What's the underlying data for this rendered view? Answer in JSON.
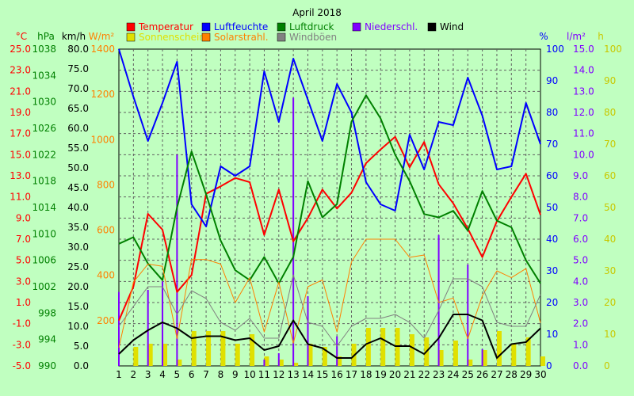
{
  "chart_data": {
    "type": "line",
    "title": "April 2018",
    "x": [
      1,
      2,
      3,
      4,
      5,
      6,
      7,
      8,
      9,
      10,
      11,
      12,
      13,
      14,
      15,
      16,
      17,
      18,
      19,
      20,
      21,
      22,
      23,
      24,
      25,
      26,
      27,
      28,
      29,
      30
    ],
    "legend": [
      {
        "label": "Temperatur",
        "color": "#ff0000"
      },
      {
        "label": "Luftfeuchte",
        "color": "#0000ff"
      },
      {
        "label": "Luftdruck",
        "color": "#008000"
      },
      {
        "label": "Niederschl.",
        "color": "#8000ff"
      },
      {
        "label": "Wind",
        "color": "#000000"
      },
      {
        "label": "Sonnenschein",
        "color": "#e0e000"
      },
      {
        "label": "Solarstrahl.",
        "color": "#ff8000"
      },
      {
        "label": "Windböen",
        "color": "#808080"
      }
    ],
    "axes": [
      {
        "unit": "°C",
        "color": "#ff0000",
        "min": -5,
        "max": 25,
        "ticks": [
          "25.0",
          "23.0",
          "21.0",
          "19.0",
          "17.0",
          "15.0",
          "13.0",
          "11.0",
          "9.0",
          "7.0",
          "5.0",
          "3.0",
          "1.0",
          "-1.0",
          "-3.0",
          "-5.0"
        ]
      },
      {
        "unit": "hPa",
        "color": "#008000",
        "min": 990,
        "max": 1038,
        "ticks": [
          "1038",
          "1034",
          "1030",
          "1026",
          "1022",
          "1018",
          "1014",
          "1010",
          "1006",
          "1002",
          "998",
          "994",
          "990"
        ]
      },
      {
        "unit": "km/h",
        "color": "#000000",
        "min": 0,
        "max": 80,
        "ticks": [
          "80.0",
          "75.0",
          "70.0",
          "65.0",
          "60.0",
          "55.0",
          "50.0",
          "45.0",
          "40.0",
          "35.0",
          "30.0",
          "25.0",
          "20.0",
          "15.0",
          "10.0",
          "5.0",
          "0.0"
        ]
      },
      {
        "unit": "W/m²",
        "color": "#ff8000",
        "min": 0,
        "max": 1400,
        "ticks": [
          "1400",
          "1200",
          "1000",
          "800",
          "600",
          "400",
          "200"
        ]
      },
      {
        "unit": "%",
        "color": "#0000ff",
        "min": 0,
        "max": 100,
        "ticks": [
          "100",
          "90",
          "80",
          "70",
          "60",
          "50",
          "40",
          "30",
          "20",
          "10",
          "0"
        ]
      },
      {
        "unit": "l/m²",
        "color": "#8000ff",
        "min": 0,
        "max": 15,
        "ticks": [
          "15.0",
          "14.0",
          "13.0",
          "12.0",
          "11.0",
          "10.0",
          "9.0",
          "8.0",
          "7.0",
          "6.0",
          "5.0",
          "4.0",
          "3.0",
          "2.0",
          "1.0",
          "0.0"
        ]
      },
      {
        "unit": "h",
        "color": "#c8c800",
        "min": 0,
        "max": 100,
        "ticks": [
          "100",
          "90",
          "80",
          "70",
          "60",
          "50",
          "40",
          "30",
          "20",
          "10",
          "0"
        ]
      }
    ],
    "series": [
      {
        "name": "Temperatur",
        "color": "#ff0000",
        "width": 2,
        "axis": 0,
        "values": [
          -0.7,
          2.5,
          9.4,
          7.9,
          2.0,
          3.6,
          11.3,
          12.0,
          12.8,
          12.4,
          7.4,
          11.7,
          6.8,
          9.0,
          11.7,
          9.9,
          11.4,
          14.2,
          15.5,
          16.7,
          13.8,
          16.2,
          12.2,
          10.4,
          8.0,
          5.3,
          8.7,
          11.0,
          13.2,
          9.3
        ]
      },
      {
        "name": "Luftfeuchte",
        "color": "#0000ff",
        "width": 2,
        "axis": 4,
        "values": [
          100,
          85,
          71,
          83,
          96,
          51,
          44,
          63,
          60,
          63,
          93,
          77,
          97,
          84,
          71,
          89,
          80,
          58,
          51,
          49,
          73,
          62,
          77,
          76,
          91,
          79,
          62,
          63,
          83,
          70
        ]
      },
      {
        "name": "Luftdruck",
        "color": "#008000",
        "width": 2,
        "axis": 1,
        "values": [
          1008.5,
          1009.5,
          1005.5,
          1003.0,
          1014.0,
          1022.5,
          1016.0,
          1009.0,
          1004.5,
          1003.0,
          1006.5,
          1002.5,
          1006.5,
          1018.0,
          1012.5,
          1014.5,
          1027.0,
          1031.0,
          1027.5,
          1022.0,
          1018.0,
          1013.0,
          1012.5,
          1013.5,
          1010.5,
          1016.5,
          1012.0,
          1011.0,
          1006.0,
          1002.5
        ]
      },
      {
        "name": "Solarstrahl.",
        "color": "#ff8000",
        "width": 1,
        "axis": 3,
        "values": [
          80,
          370,
          450,
          440,
          120,
          470,
          470,
          450,
          280,
          390,
          150,
          370,
          100,
          350,
          380,
          150,
          460,
          560,
          560,
          560,
          480,
          490,
          280,
          300,
          120,
          310,
          420,
          390,
          430,
          190
        ]
      },
      {
        "name": "Windböen",
        "color": "#808080",
        "width": 1,
        "axis": 2,
        "values": [
          10.0,
          15.0,
          20.0,
          20.0,
          13.0,
          19.0,
          17.0,
          11.0,
          9.0,
          12.0,
          7.0,
          7.0,
          23.0,
          11.0,
          10.0,
          5.0,
          10.0,
          12.0,
          12.0,
          13.0,
          11.0,
          7.0,
          14.0,
          22.0,
          22.0,
          20.0,
          11.0,
          10.0,
          10.0,
          18.0
        ]
      },
      {
        "name": "Wind",
        "color": "#000000",
        "width": 2,
        "axis": 2,
        "values": [
          3.0,
          6.5,
          9.0,
          11.0,
          9.5,
          7.0,
          7.5,
          7.5,
          6.5,
          7.0,
          4.0,
          5.0,
          11.5,
          5.5,
          4.5,
          2.0,
          2.0,
          5.5,
          7.0,
          5.0,
          5.0,
          3.0,
          7.0,
          13.0,
          13.0,
          11.5,
          2.0,
          5.5,
          6.0,
          9.5
        ]
      }
    ],
    "bars": [
      {
        "name": "Sonnenschein",
        "color": "#e0e000",
        "axis": 6,
        "width": 6,
        "offset": 3,
        "values": [
          0,
          6,
          7,
          7,
          2,
          11,
          11,
          11,
          7,
          10,
          3,
          2,
          1,
          7,
          6,
          3,
          7,
          12,
          12,
          12,
          10,
          9,
          5,
          8,
          2,
          5,
          11,
          7,
          9,
          3
        ]
      },
      {
        "name": "Niederschl.",
        "color": "#8000ff",
        "axis": 5,
        "width": 2,
        "offset": 0,
        "values": [
          3.5,
          0,
          3.6,
          4.0,
          10.0,
          0,
          0,
          0,
          0,
          0,
          0.3,
          0.6,
          12.7,
          3.3,
          0,
          1.4,
          0,
          0,
          0,
          0,
          0,
          0,
          6.2,
          0,
          4.8,
          0.8,
          0,
          0,
          0,
          0
        ]
      }
    ]
  }
}
